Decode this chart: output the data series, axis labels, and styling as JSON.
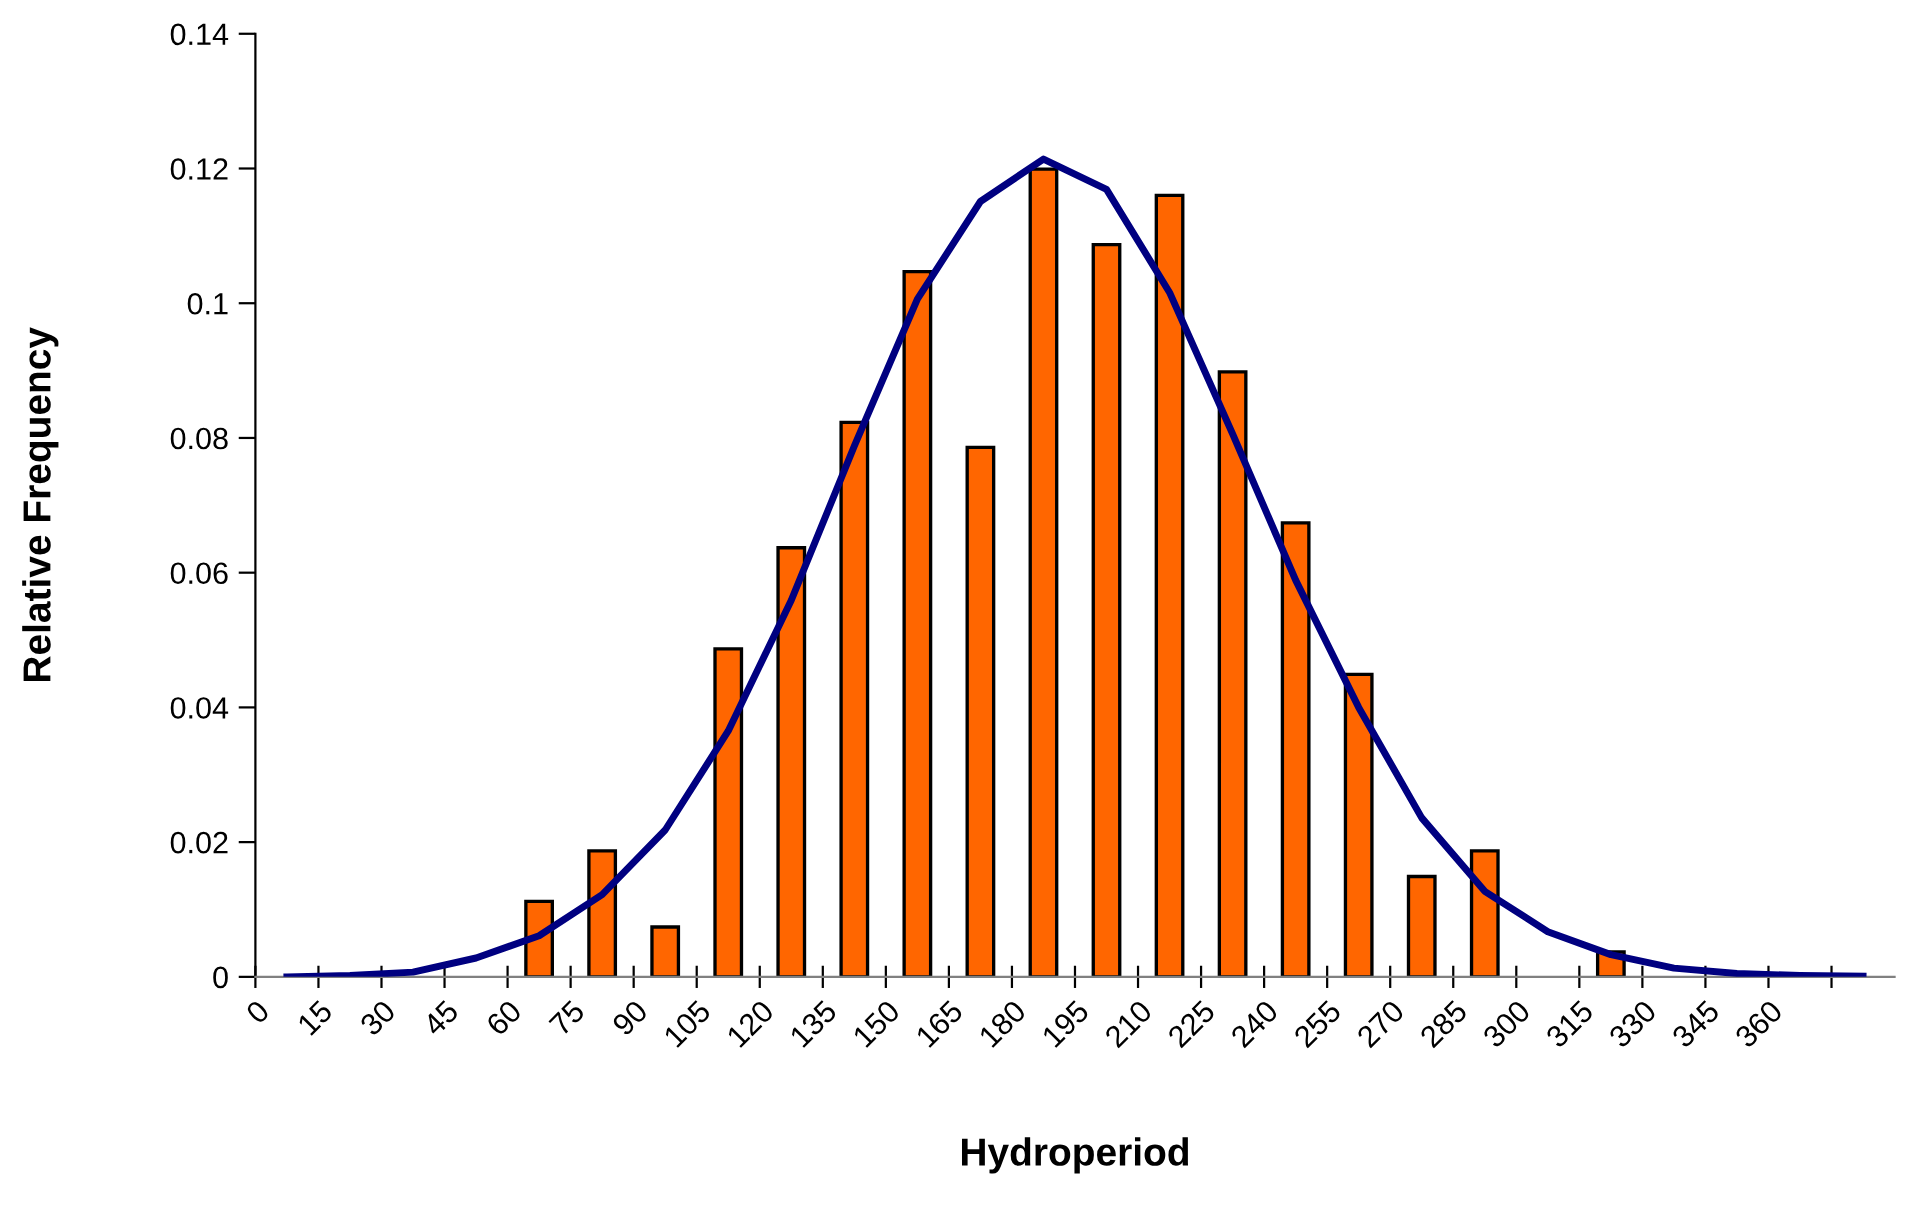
{
  "chart_data": {
    "type": "histogram",
    "xlabel": "Hydroperiod",
    "ylabel": "Relative Frequency",
    "bins": [
      0,
      15,
      30,
      45,
      60,
      75,
      90,
      105,
      120,
      135,
      150,
      165,
      180,
      195,
      210,
      225,
      240,
      255,
      270,
      285,
      300,
      315,
      330,
      345,
      360,
      375,
      390
    ],
    "values": [
      0,
      0,
      0,
      0,
      0.0112,
      0.0187,
      0.0074,
      0.0487,
      0.0637,
      0.0823,
      0.1047,
      0.0786,
      0.1199,
      0.1087,
      0.116,
      0.0898,
      0.0674,
      0.0449,
      0.0149,
      0.0187,
      0,
      0.0037,
      0,
      0,
      0,
      0
    ],
    "color": "#ff6600",
    "series": [
      {
        "type": "line",
        "color": "#000080",
        "x": [
          7.5,
          22.5,
          37.5,
          52.5,
          67.5,
          82.5,
          97.5,
          112.5,
          127.5,
          142.5,
          157.5,
          172.5,
          187.5,
          202.5,
          217.5,
          232.5,
          247.5,
          262.5,
          277.5,
          292.5,
          307.5,
          322.5,
          337.5,
          352.5,
          367.5,
          382.5
        ],
        "values": [
          0,
          0.0002,
          0.0007,
          0.0028,
          0.0061,
          0.0122,
          0.0218,
          0.0365,
          0.0559,
          0.0788,
          0.1006,
          0.1151,
          0.1214,
          0.1169,
          0.1016,
          0.0806,
          0.0589,
          0.04,
          0.0236,
          0.0127,
          0.0067,
          0.0033,
          0.0013,
          0.0005,
          0.0002,
          0.0001
        ]
      }
    ],
    "xlim": [
      0,
      390
    ],
    "ylim": [
      0,
      0.14
    ],
    "xticks": [
      0,
      15,
      30,
      45,
      60,
      75,
      90,
      105,
      120,
      135,
      150,
      165,
      180,
      195,
      210,
      225,
      240,
      255,
      270,
      285,
      300,
      315,
      330,
      345,
      360,
      {
        "value": 375,
        "label": null
      }
    ],
    "yticks": [
      0,
      0.02,
      0.04,
      0.06,
      0.08,
      0.1,
      0.12,
      0.14
    ],
    "grid": false,
    "legend": false,
    "marker": "none",
    "line_style": "solid"
  }
}
